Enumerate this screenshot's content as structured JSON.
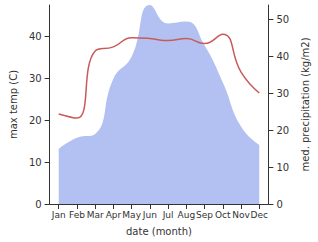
{
  "chart_data": {
    "type": "line",
    "xlabel": "date (month)",
    "ylabel": "max temp (C)",
    "y2label": "med. precipitation (kg/m2)",
    "categories": [
      "Jan",
      "Feb",
      "Mar",
      "Apr",
      "May",
      "Jun",
      "Jul",
      "Aug",
      "Sep",
      "Oct",
      "Nov",
      "Dec"
    ],
    "series": [
      {
        "type": "area",
        "axis": "y2",
        "color": "#b3c1f2",
        "values": [
          15,
          18,
          19,
          34,
          40,
          54,
          49,
          49.5,
          43,
          33,
          21,
          16
        ]
      },
      {
        "type": "line",
        "color": "#c85a5a",
        "values": [
          21.5,
          20.5,
          36.5,
          37.5,
          39.7,
          39.5,
          39,
          39.5,
          38.3,
          40.5,
          31.5,
          26.5
        ]
      }
    ],
    "ylim": [
      0,
      47.5
    ],
    "yticks": [
      0,
      10,
      20,
      30,
      40
    ],
    "y2lim": [
      0,
      54
    ],
    "y2ticks": [
      0,
      10,
      20,
      30,
      40,
      50
    ],
    "grid": false
  }
}
